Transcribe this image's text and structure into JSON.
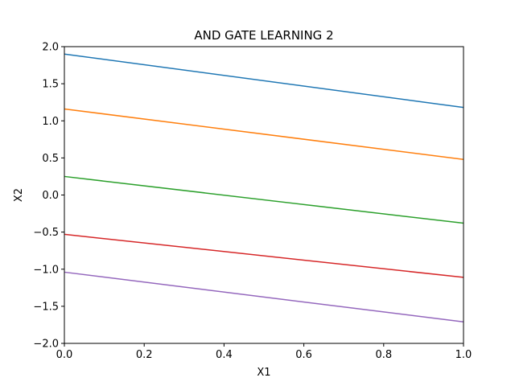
{
  "chart_data": {
    "type": "line",
    "title": "AND GATE LEARNING 2",
    "xlabel": "X1",
    "ylabel": "X2",
    "xlim": [
      0.0,
      1.0
    ],
    "ylim": [
      -2.0,
      2.0
    ],
    "xticks": [
      "0.0",
      "0.2",
      "0.4",
      "0.6",
      "0.8",
      "1.0"
    ],
    "yticks": [
      "−2.0",
      "−1.5",
      "−1.0",
      "−0.5",
      "0.0",
      "0.5",
      "1.0",
      "1.5",
      "2.0"
    ],
    "grid": false,
    "legend": false,
    "series": [
      {
        "color": "#1f77b4",
        "x": [
          0.0,
          1.0
        ],
        "y": [
          1.9,
          1.18
        ]
      },
      {
        "color": "#ff7f0e",
        "x": [
          0.0,
          1.0
        ],
        "y": [
          1.16,
          0.48
        ]
      },
      {
        "color": "#2ca02c",
        "x": [
          0.0,
          1.0
        ],
        "y": [
          0.25,
          -0.38
        ]
      },
      {
        "color": "#d62728",
        "x": [
          0.0,
          1.0
        ],
        "y": [
          -0.53,
          -1.11
        ]
      },
      {
        "color": "#9467bd",
        "x": [
          0.0,
          1.0
        ],
        "y": [
          -1.04,
          -1.71
        ]
      }
    ]
  }
}
